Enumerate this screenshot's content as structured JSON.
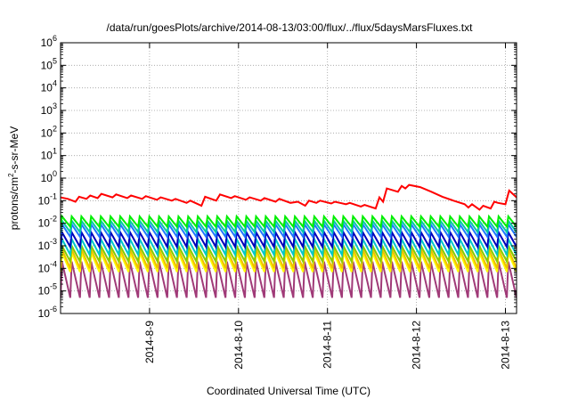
{
  "chart_data": {
    "type": "line",
    "title": "/data/run/goesPlots/archive/2014-08-13/03:00/flux/../flux/5daysMarsFluxes.txt",
    "xlabel": "Coordinated Universal Time (UTC)",
    "ylabel_parts": [
      "protons/cm",
      "2",
      "-s-sr-MeV"
    ],
    "y_scale": "log",
    "ylim": [
      1e-06,
      1000000.0
    ],
    "y_ticks": [
      {
        "base": "10",
        "exp": "-6",
        "value": 1e-06
      },
      {
        "base": "10",
        "exp": "-5",
        "value": 1e-05
      },
      {
        "base": "10",
        "exp": "-4",
        "value": 0.0001
      },
      {
        "base": "10",
        "exp": "-3",
        "value": 0.001
      },
      {
        "base": "10",
        "exp": "-2",
        "value": 0.01
      },
      {
        "base": "10",
        "exp": "-1",
        "value": 0.1
      },
      {
        "base": "10",
        "exp": "0",
        "value": 1
      },
      {
        "base": "10",
        "exp": "1",
        "value": 10
      },
      {
        "base": "10",
        "exp": "2",
        "value": 100
      },
      {
        "base": "10",
        "exp": "3",
        "value": 1000
      },
      {
        "base": "10",
        "exp": "4",
        "value": 10000
      },
      {
        "base": "10",
        "exp": "5",
        "value": 100000
      },
      {
        "base": "10",
        "exp": "6",
        "value": 1000000
      }
    ],
    "x_range_days": [
      "2014-08-08 00:00",
      "2014-08-13 03:00"
    ],
    "x_ticks": [
      {
        "label": "2014-8-9",
        "date": "2014-08-09"
      },
      {
        "label": "2014-8-10",
        "date": "2014-08-10"
      },
      {
        "label": "2014-8-11",
        "date": "2014-08-11"
      },
      {
        "label": "2014-8-12",
        "date": "2014-08-12"
      },
      {
        "label": "2014-8-13",
        "date": "2014-08-13"
      }
    ],
    "grid": true,
    "legend": "none",
    "cycles_per_day": 9.25,
    "red_series": {
      "color": "#ff0000",
      "points": [
        [
          "2014-08-08 00:00",
          0.14
        ],
        [
          "2014-08-08 02:00",
          0.12
        ],
        [
          "2014-08-08 04:00",
          0.09
        ],
        [
          "2014-08-08 05:00",
          0.15
        ],
        [
          "2014-08-08 07:00",
          0.12
        ],
        [
          "2014-08-08 08:00",
          0.17
        ],
        [
          "2014-08-08 10:00",
          0.13
        ],
        [
          "2014-08-08 11:00",
          0.2
        ],
        [
          "2014-08-08 14:00",
          0.14
        ],
        [
          "2014-08-08 15:00",
          0.19
        ],
        [
          "2014-08-08 18:00",
          0.13
        ],
        [
          "2014-08-08 19:00",
          0.17
        ],
        [
          "2014-08-08 22:00",
          0.12
        ],
        [
          "2014-08-08 23:00",
          0.16
        ],
        [
          "2014-08-09 02:00",
          0.11
        ],
        [
          "2014-08-09 03:00",
          0.14
        ],
        [
          "2014-08-09 06:00",
          0.1
        ],
        [
          "2014-08-09 07:00",
          0.12
        ],
        [
          "2014-08-09 10:00",
          0.08
        ],
        [
          "2014-08-09 11:00",
          0.1
        ],
        [
          "2014-08-09 14:00",
          0.06
        ],
        [
          "2014-08-09 15:00",
          0.15
        ],
        [
          "2014-08-09 18:00",
          0.1
        ],
        [
          "2014-08-09 19:00",
          0.19
        ],
        [
          "2014-08-09 22:00",
          0.13
        ],
        [
          "2014-08-09 23:00",
          0.16
        ],
        [
          "2014-08-10 02:00",
          0.11
        ],
        [
          "2014-08-10 03:00",
          0.14
        ],
        [
          "2014-08-10 06:00",
          0.1
        ],
        [
          "2014-08-10 07:00",
          0.13
        ],
        [
          "2014-08-10 10:00",
          0.09
        ],
        [
          "2014-08-10 11:00",
          0.12
        ],
        [
          "2014-08-10 14:00",
          0.08
        ],
        [
          "2014-08-10 16:00",
          0.09
        ],
        [
          "2014-08-10 18:00",
          0.06
        ],
        [
          "2014-08-10 19:00",
          0.1
        ],
        [
          "2014-08-10 21:00",
          0.08
        ],
        [
          "2014-08-10 22:00",
          0.1
        ],
        [
          "2014-08-11 01:00",
          0.075
        ],
        [
          "2014-08-11 02:00",
          0.09
        ],
        [
          "2014-08-11 05:00",
          0.07
        ],
        [
          "2014-08-11 06:00",
          0.08
        ],
        [
          "2014-08-11 09:00",
          0.055
        ],
        [
          "2014-08-11 10:00",
          0.065
        ],
        [
          "2014-08-11 13:00",
          0.045
        ],
        [
          "2014-08-11 14:00",
          0.14
        ],
        [
          "2014-08-11 15:00",
          0.09
        ],
        [
          "2014-08-11 16:00",
          0.35
        ],
        [
          "2014-08-11 19:00",
          0.25
        ],
        [
          "2014-08-11 20:00",
          0.45
        ],
        [
          "2014-08-11 21:00",
          0.35
        ],
        [
          "2014-08-11 22:00",
          0.5
        ],
        [
          "2014-08-12 01:00",
          0.4
        ],
        [
          "2014-08-12 04:00",
          0.25
        ],
        [
          "2014-08-12 07:00",
          0.15
        ],
        [
          "2014-08-12 10:00",
          0.1
        ],
        [
          "2014-08-12 13:00",
          0.07
        ],
        [
          "2014-08-12 14:00",
          0.05
        ],
        [
          "2014-08-12 15:00",
          0.07
        ],
        [
          "2014-08-12 17:00",
          0.04
        ],
        [
          "2014-08-12 18:00",
          0.06
        ],
        [
          "2014-08-12 20:00",
          0.045
        ],
        [
          "2014-08-12 21:00",
          0.09
        ],
        [
          "2014-08-12 22:00",
          0.08
        ],
        [
          "2014-08-13 00:00",
          0.07
        ],
        [
          "2014-08-13 01:00",
          0.28
        ],
        [
          "2014-08-13 03:00",
          0.14
        ]
      ]
    },
    "sawtooth_series": [
      {
        "color": "#00ee00",
        "high": 0.02,
        "low": 0.007,
        "drift": 0
      },
      {
        "color": "#00c8a8",
        "high": 0.013,
        "low": 0.004,
        "drift": 0
      },
      {
        "color": "#1e78ff",
        "high": 0.009,
        "low": 0.0025,
        "drift": 0
      },
      {
        "color": "#0000bb",
        "high": 0.004,
        "low": 0.0009,
        "drift": 0
      },
      {
        "color": "#00c8c8",
        "high": 0.002,
        "low": 0.0004,
        "drift": 0
      },
      {
        "color": "#88cc00",
        "high": 0.001,
        "low": 0.0002,
        "drift": 0
      },
      {
        "color": "#f0c000",
        "high": 0.0007,
        "low": 0.0001,
        "drift": 0
      },
      {
        "color": "#ffff00",
        "high": 0.0005,
        "low": 7e-05,
        "drift": 0
      },
      {
        "color": "#a03a78",
        "high": 0.0002,
        "low": 5e-06,
        "drift": 0
      }
    ]
  }
}
